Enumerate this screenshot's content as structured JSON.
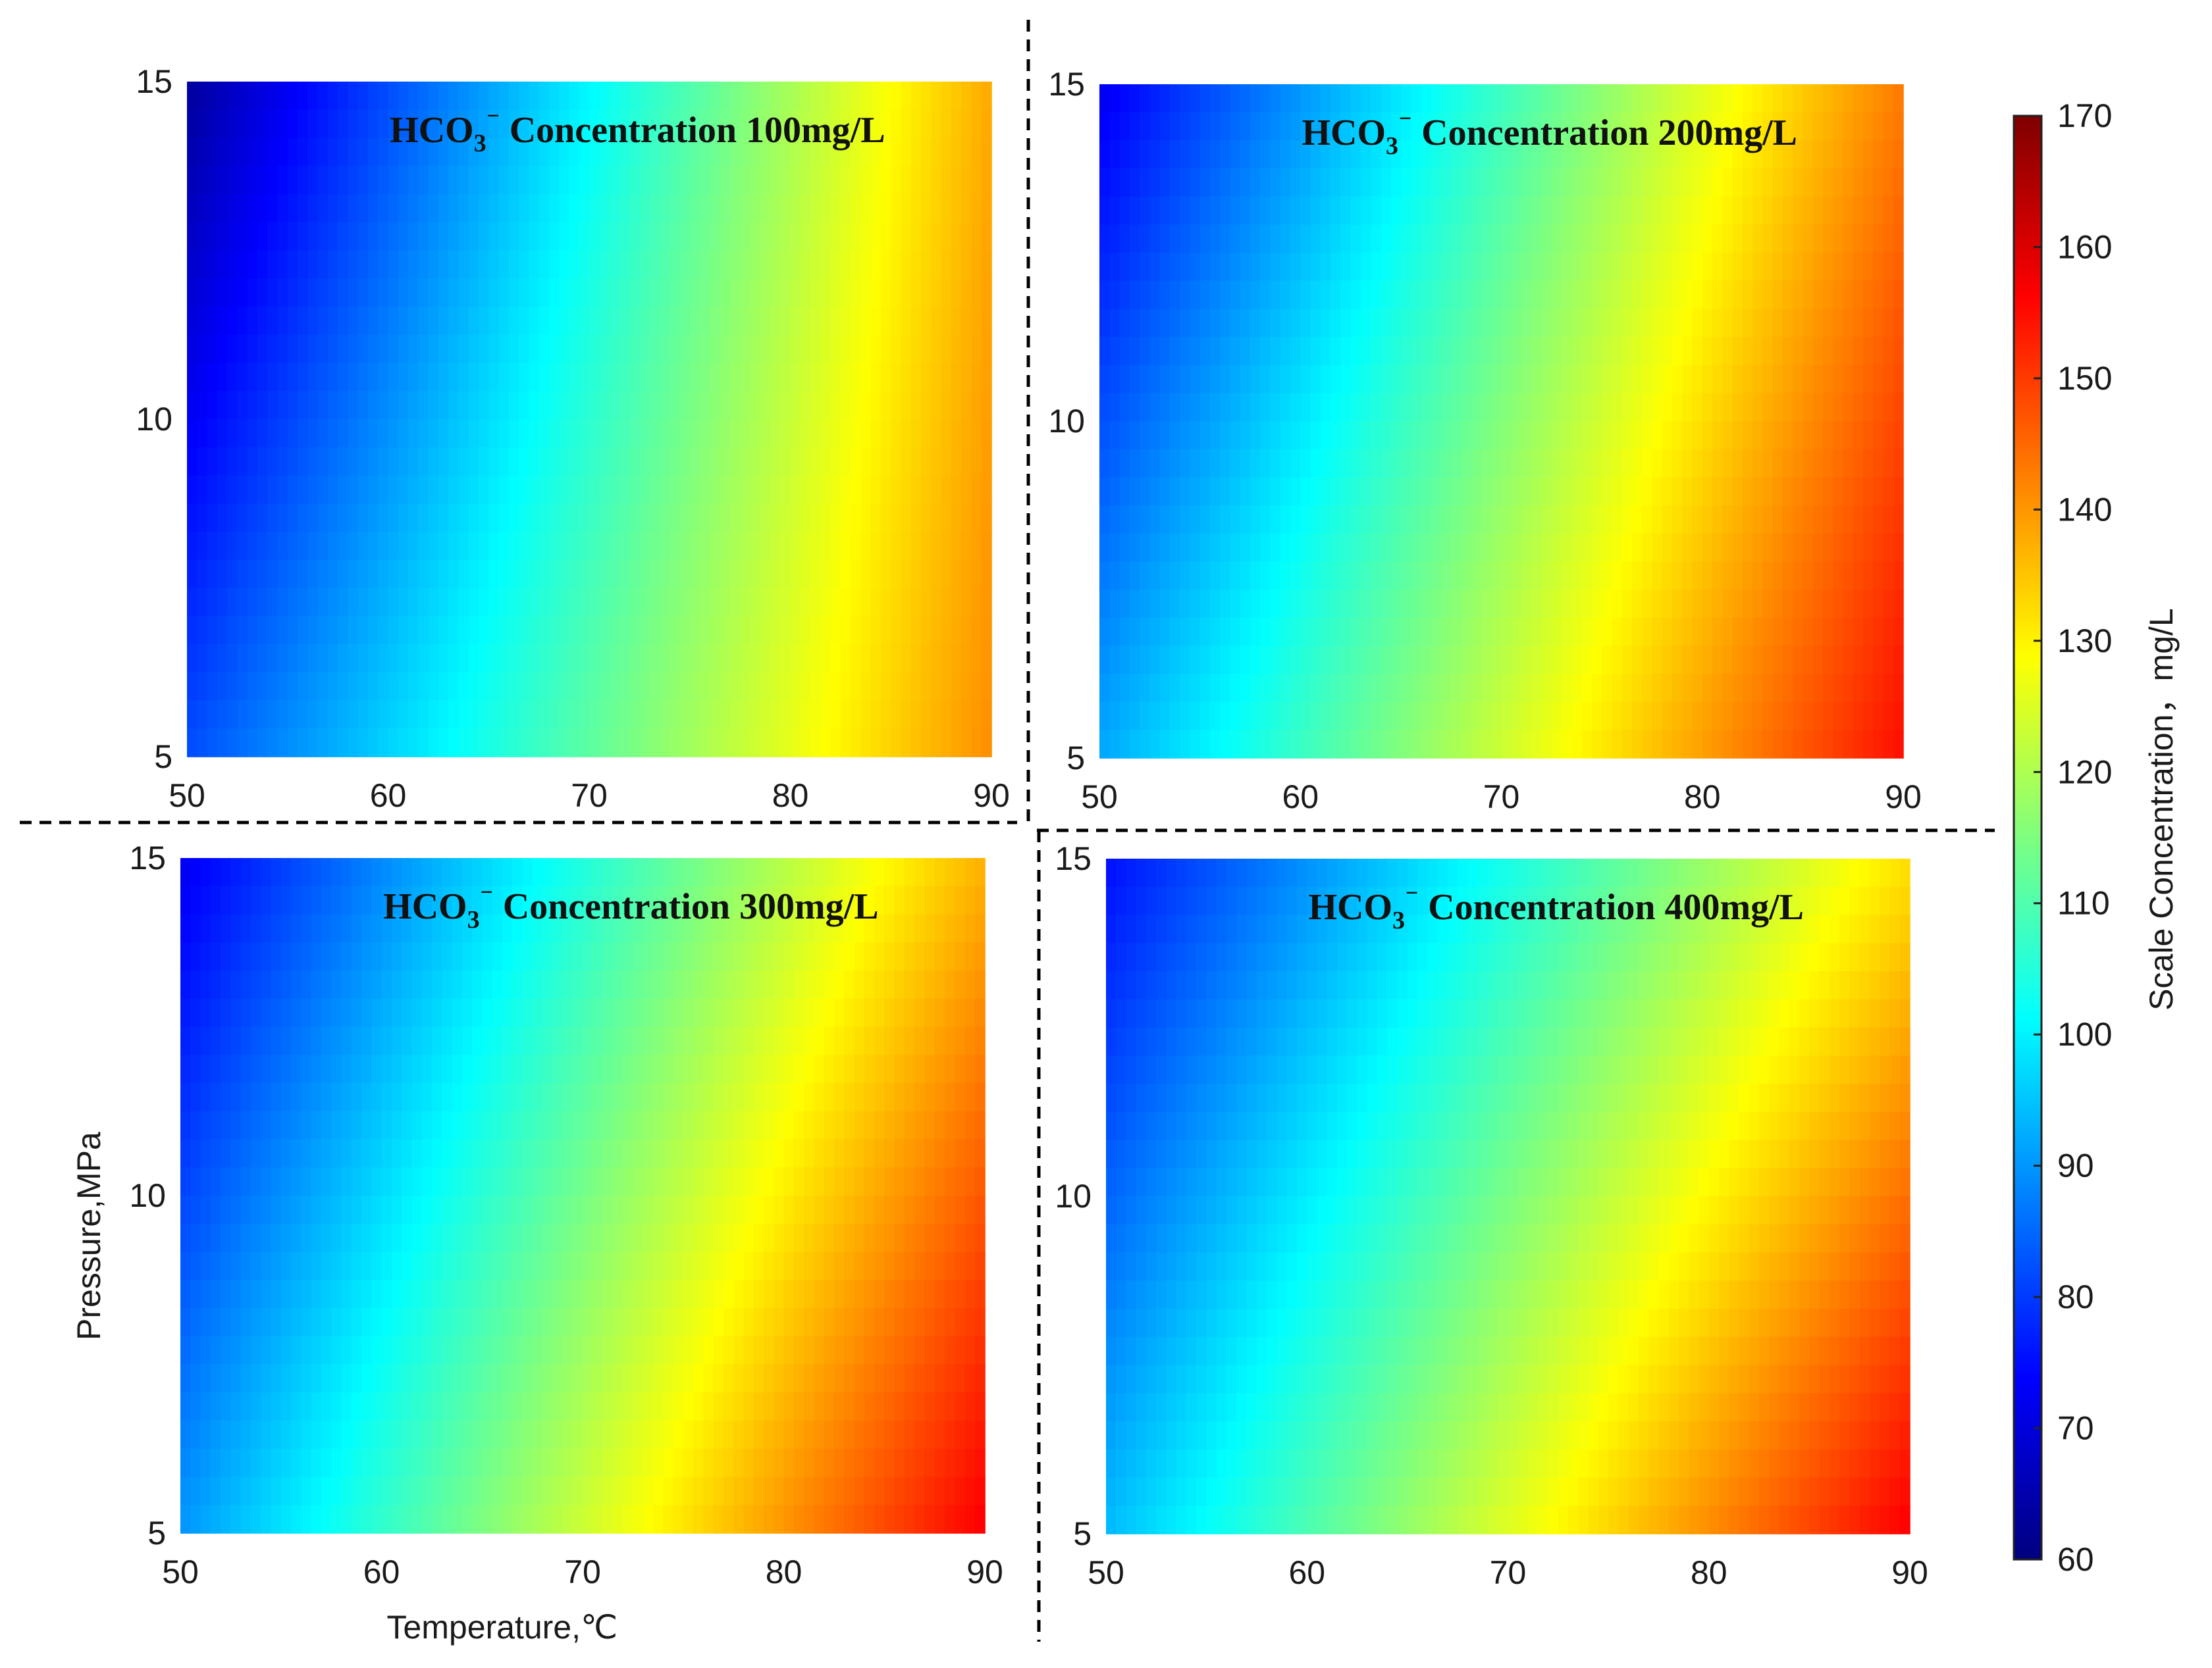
{
  "chart_data": [
    {
      "type": "heatmap",
      "title_prefix": "HCO",
      "title_sub": "3",
      "title_sup": "⁻",
      "title_suffix": " Concentration 100mg/L",
      "xlabel": "",
      "ylabel": "",
      "xlim": [
        50,
        90
      ],
      "ylim": [
        5,
        15
      ],
      "xticks": [
        "50",
        "60",
        "70",
        "80",
        "90"
      ],
      "yticks": [
        "5",
        "10",
        "15"
      ],
      "grid": false,
      "x": [
        50,
        90
      ],
      "y": [
        5,
        15
      ],
      "z": [
        [
          82,
          141
        ],
        [
          63,
          138
        ]
      ]
    },
    {
      "type": "heatmap",
      "title_prefix": "HCO",
      "title_sub": "3",
      "title_sup": "⁻",
      "title_suffix": " Concentration 200mg/L",
      "xlabel": "",
      "ylabel": "",
      "xlim": [
        50,
        90
      ],
      "ylim": [
        5,
        15
      ],
      "xticks": [
        "50",
        "60",
        "70",
        "80",
        "90"
      ],
      "yticks": [
        "5",
        "10",
        "15"
      ],
      "grid": false,
      "x": [
        50,
        90
      ],
      "y": [
        5,
        15
      ],
      "z": [
        [
          92,
          155
        ],
        [
          72,
          143
        ]
      ]
    },
    {
      "type": "heatmap",
      "title_prefix": "HCO",
      "title_sub": "3",
      "title_sup": "⁻",
      "title_suffix": " Concentration 300mg/L",
      "xlabel": "Temperature,℃",
      "ylabel": "Pressure,MPa",
      "xlim": [
        50,
        90
      ],
      "ylim": [
        5,
        15
      ],
      "xticks": [
        "50",
        "60",
        "70",
        "80",
        "90"
      ],
      "yticks": [
        "5",
        "10",
        "15"
      ],
      "grid": false,
      "x": [
        50,
        90
      ],
      "y": [
        5,
        15
      ],
      "z": [
        [
          90,
          157
        ],
        [
          72,
          137
        ]
      ]
    },
    {
      "type": "heatmap",
      "title_prefix": "HCO",
      "title_sub": "3",
      "title_sup": "⁻",
      "title_suffix": " Concentration 400mg/L",
      "xlabel": "",
      "ylabel": "",
      "xlim": [
        50,
        90
      ],
      "ylim": [
        5,
        15
      ],
      "xticks": [
        "50",
        "60",
        "70",
        "80",
        "90"
      ],
      "yticks": [
        "5",
        "10",
        "15"
      ],
      "grid": false,
      "x": [
        50,
        90
      ],
      "y": [
        5,
        15
      ],
      "z": [
        [
          94,
          157
        ],
        [
          75,
          132
        ]
      ]
    }
  ],
  "colorbar": {
    "label": "Scale Concentration，mg/L",
    "range": [
      60,
      170
    ],
    "ticks": [
      "60",
      "70",
      "80",
      "90",
      "100",
      "110",
      "120",
      "130",
      "140",
      "150",
      "160",
      "170"
    ],
    "colormap": "jet",
    "stops": [
      "#00007f",
      "#0000ff",
      "#007fff",
      "#00ffff",
      "#7fff7f",
      "#ffff00",
      "#ff7f00",
      "#ff0000",
      "#7f0000"
    ]
  },
  "dividers": {
    "style": "dashed",
    "color": "#000000"
  }
}
